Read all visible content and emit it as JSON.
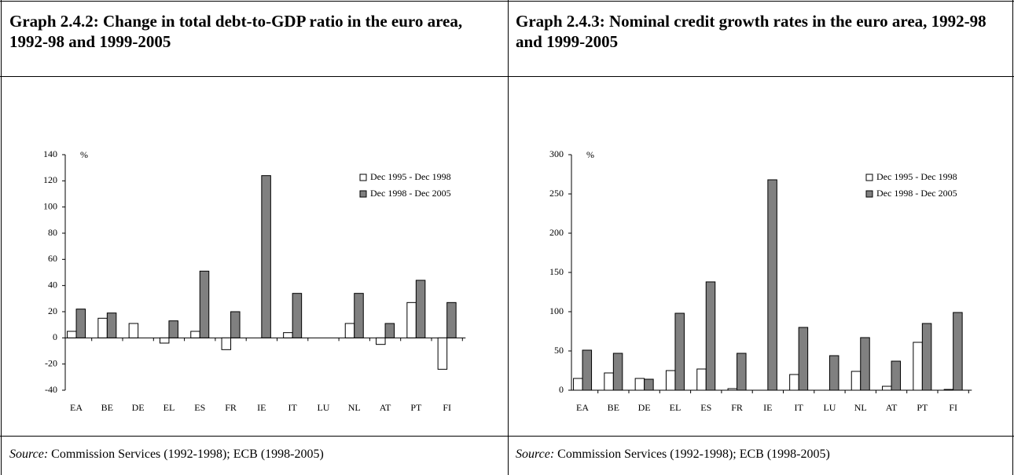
{
  "chart_data": [
    {
      "type": "bar",
      "title": "Graph 2.4.2: Change in total debt-to-GDP ratio in the euro area, 1992-98 and 1999-2005",
      "ylabel": "%",
      "categories": [
        "EA",
        "BE",
        "DE",
        "EL",
        "ES",
        "FR",
        "IE",
        "IT",
        "LU",
        "NL",
        "AT",
        "PT",
        "FI"
      ],
      "series": [
        {
          "name": "Dec 1995 - Dec 1998",
          "color": "#ffffff",
          "values": [
            5,
            15,
            11,
            -4,
            5,
            -9,
            null,
            4,
            null,
            11,
            -5,
            27,
            -24
          ]
        },
        {
          "name": "Dec 1998 - Dec 2005",
          "color": "#808080",
          "values": [
            22,
            19,
            null,
            13,
            51,
            20,
            124,
            34,
            null,
            34,
            11,
            44,
            27
          ]
        }
      ],
      "ylim": [
        -40,
        140
      ],
      "yticks": [
        -40,
        -20,
        0,
        20,
        40,
        60,
        80,
        100,
        120,
        140
      ],
      "legend": "upper right",
      "source_label": "Source:",
      "source": "Commission Services (1992-1998); ECB (1998-2005)"
    },
    {
      "type": "bar",
      "title": "Graph 2.4.3: Nominal credit growth rates in the euro area, 1992-98 and 1999-2005",
      "ylabel": "%",
      "categories": [
        "EA",
        "BE",
        "DE",
        "EL",
        "ES",
        "FR",
        "IE",
        "IT",
        "LU",
        "NL",
        "AT",
        "PT",
        "FI"
      ],
      "series": [
        {
          "name": "Dec 1995 - Dec 1998",
          "color": "#ffffff",
          "values": [
            15,
            22,
            15,
            25,
            27,
            2,
            null,
            20,
            null,
            24,
            5,
            61,
            1
          ]
        },
        {
          "name": "Dec 1998 - Dec 2005",
          "color": "#808080",
          "values": [
            51,
            47,
            14,
            98,
            138,
            47,
            268,
            80,
            44,
            67,
            37,
            85,
            99
          ]
        }
      ],
      "ylim": [
        0,
        300
      ],
      "yticks": [
        0,
        50,
        100,
        150,
        200,
        250,
        300
      ],
      "legend": "upper right",
      "source_label": "Source:",
      "source": "Commission Services (1992-1998); ECB (1998-2005)"
    }
  ]
}
